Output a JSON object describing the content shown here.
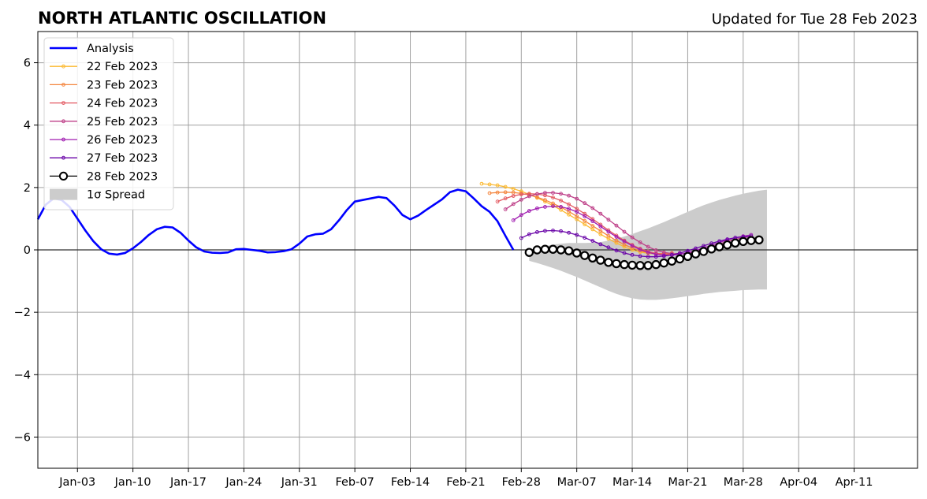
{
  "chart_data": {
    "type": "line",
    "title": "NORTH ATLANTIC OSCILLATION",
    "subtitle": "Updated for Tue 28 Feb 2023",
    "xlabel": "",
    "ylabel": "",
    "ylim": [
      -7,
      7
    ],
    "xlim": [
      "2022-12-29",
      "2023-04-19"
    ],
    "grid": true,
    "legend_position": "top-left",
    "x_ticks": [
      {
        "date": "2023-01-03",
        "label": "Jan-03"
      },
      {
        "date": "2023-01-10",
        "label": "Jan-10"
      },
      {
        "date": "2023-01-17",
        "label": "Jan-17"
      },
      {
        "date": "2023-01-24",
        "label": "Jan-24"
      },
      {
        "date": "2023-01-31",
        "label": "Jan-31"
      },
      {
        "date": "2023-02-07",
        "label": "Feb-07"
      },
      {
        "date": "2023-02-14",
        "label": "Feb-14"
      },
      {
        "date": "2023-02-21",
        "label": "Feb-21"
      },
      {
        "date": "2023-02-28",
        "label": "Feb-28"
      },
      {
        "date": "2023-03-07",
        "label": "Mar-07"
      },
      {
        "date": "2023-03-14",
        "label": "Mar-14"
      },
      {
        "date": "2023-03-21",
        "label": "Mar-21"
      },
      {
        "date": "2023-03-28",
        "label": "Mar-28"
      },
      {
        "date": "2023-04-04",
        "label": "Apr-04"
      },
      {
        "date": "2023-04-11",
        "label": "Apr-11"
      }
    ],
    "y_ticks": [
      {
        "value": 6,
        "label": "6"
      },
      {
        "value": 4,
        "label": "4"
      },
      {
        "value": 2,
        "label": "2"
      },
      {
        "value": 0,
        "label": "0"
      },
      {
        "value": -2,
        "label": "−2"
      },
      {
        "value": -4,
        "label": "−4"
      },
      {
        "value": -6,
        "label": "−6"
      }
    ],
    "analysis": {
      "name": "Analysis",
      "color": "#0000ff",
      "start": "2022-12-29",
      "values": [
        0.98,
        1.45,
        1.65,
        1.6,
        1.38,
        1.0,
        0.62,
        0.28,
        0.02,
        -0.12,
        -0.15,
        -0.1,
        0.05,
        0.25,
        0.48,
        0.66,
        0.74,
        0.72,
        0.55,
        0.3,
        0.08,
        -0.05,
        -0.09,
        -0.1,
        -0.08,
        0.02,
        0.03,
        0.0,
        -0.03,
        -0.08,
        -0.07,
        -0.04,
        0.02,
        0.2,
        0.43,
        0.5,
        0.52,
        0.66,
        0.95,
        1.28,
        1.55,
        1.6,
        1.65,
        1.7,
        1.66,
        1.42,
        1.12,
        0.98,
        1.1,
        1.28,
        1.45,
        1.62,
        1.85,
        1.93,
        1.88,
        1.65,
        1.4,
        1.22,
        0.92,
        0.45,
        0.0
      ]
    },
    "forecasts": [
      {
        "name": "22 Feb 2023",
        "color": "#fbb931",
        "marker": "dot",
        "start": "2023-02-23",
        "values": [
          2.12,
          2.1,
          2.07,
          2.02,
          1.96,
          1.88,
          1.78,
          1.67,
          1.55,
          1.42,
          1.28,
          1.13,
          0.98,
          0.82,
          0.66,
          0.5,
          0.36,
          0.22,
          0.1,
          0.0,
          -0.07,
          -0.11,
          -0.13,
          -0.12
        ]
      },
      {
        "name": "23 Feb 2023",
        "color": "#f4863f",
        "marker": "dot",
        "start": "2023-02-24",
        "values": [
          1.82,
          1.84,
          1.85,
          1.84,
          1.81,
          1.76,
          1.69,
          1.6,
          1.49,
          1.37,
          1.23,
          1.08,
          0.93,
          0.77,
          0.61,
          0.45,
          0.3,
          0.17,
          0.06,
          -0.03,
          -0.09,
          -0.12,
          -0.12,
          -0.1
        ]
      },
      {
        "name": "24 Feb 2023",
        "color": "#e35a62",
        "marker": "dot",
        "start": "2023-02-25",
        "values": [
          1.55,
          1.65,
          1.73,
          1.78,
          1.8,
          1.79,
          1.75,
          1.68,
          1.58,
          1.46,
          1.32,
          1.16,
          0.99,
          0.81,
          0.63,
          0.46,
          0.3,
          0.16,
          0.04,
          -0.05,
          -0.11,
          -0.14,
          -0.14,
          -0.11
        ]
      },
      {
        "name": "25 Feb 2023",
        "color": "#be3f88",
        "marker": "dot",
        "start": "2023-02-26",
        "values": [
          1.3,
          1.47,
          1.61,
          1.72,
          1.79,
          1.83,
          1.83,
          1.8,
          1.74,
          1.64,
          1.5,
          1.34,
          1.16,
          0.97,
          0.78,
          0.58,
          0.4,
          0.24,
          0.1,
          -0.01,
          -0.08,
          -0.12,
          -0.13,
          -0.11,
          -0.06,
          0.01,
          0.1,
          0.19,
          0.27,
          0.34,
          0.39,
          0.43
        ]
      },
      {
        "name": "26 Feb 2023",
        "color": "#a01cb0",
        "marker": "dot",
        "start": "2023-02-27",
        "values": [
          0.95,
          1.12,
          1.25,
          1.33,
          1.38,
          1.4,
          1.38,
          1.32,
          1.22,
          1.08,
          0.92,
          0.75,
          0.58,
          0.42,
          0.27,
          0.13,
          0.01,
          -0.08,
          -0.14,
          -0.17,
          -0.17,
          -0.14,
          -0.09,
          -0.02,
          0.06,
          0.15,
          0.24,
          0.32,
          0.39,
          0.44,
          0.48
        ]
      },
      {
        "name": "27 Feb 2023",
        "color": "#6a05a8",
        "marker": "dot",
        "start": "2023-02-28",
        "values": [
          0.38,
          0.5,
          0.57,
          0.61,
          0.62,
          0.6,
          0.55,
          0.48,
          0.39,
          0.29,
          0.18,
          0.08,
          -0.02,
          -0.1,
          -0.16,
          -0.2,
          -0.22,
          -0.22,
          -0.2,
          -0.16,
          -0.1,
          -0.03,
          0.05,
          0.13,
          0.21,
          0.28,
          0.34,
          0.39,
          0.42,
          0.44
        ]
      },
      {
        "name": "28 Feb 2023",
        "color": "#000000",
        "marker": "circle",
        "start": "2023-03-01",
        "values": [
          -0.08,
          0.0,
          0.02,
          0.02,
          0.0,
          -0.03,
          -0.1,
          -0.18,
          -0.26,
          -0.33,
          -0.4,
          -0.44,
          -0.47,
          -0.49,
          -0.5,
          -0.5,
          -0.47,
          -0.42,
          -0.36,
          -0.29,
          -0.21,
          -0.13,
          -0.05,
          0.03,
          0.1,
          0.16,
          0.22,
          0.27,
          0.3,
          0.32
        ]
      }
    ],
    "spread": {
      "name": "1σ Spread",
      "color": "#cccccc",
      "start": "2023-03-01",
      "upper": [
        -0.05,
        0.05,
        0.12,
        0.17,
        0.2,
        0.22,
        0.22,
        0.22,
        0.23,
        0.25,
        0.3,
        0.36,
        0.43,
        0.51,
        0.6,
        0.69,
        0.79,
        0.89,
        1.0,
        1.11,
        1.22,
        1.33,
        1.43,
        1.52,
        1.6,
        1.67,
        1.74,
        1.8,
        1.85,
        1.9,
        1.93
      ],
      "lower": [
        -0.35,
        -0.42,
        -0.5,
        -0.58,
        -0.67,
        -0.77,
        -0.87,
        -0.98,
        -1.09,
        -1.2,
        -1.31,
        -1.41,
        -1.49,
        -1.55,
        -1.59,
        -1.6,
        -1.6,
        -1.58,
        -1.55,
        -1.52,
        -1.48,
        -1.45,
        -1.41,
        -1.38,
        -1.35,
        -1.33,
        -1.31,
        -1.29,
        -1.28,
        -1.27,
        -1.27
      ]
    }
  }
}
